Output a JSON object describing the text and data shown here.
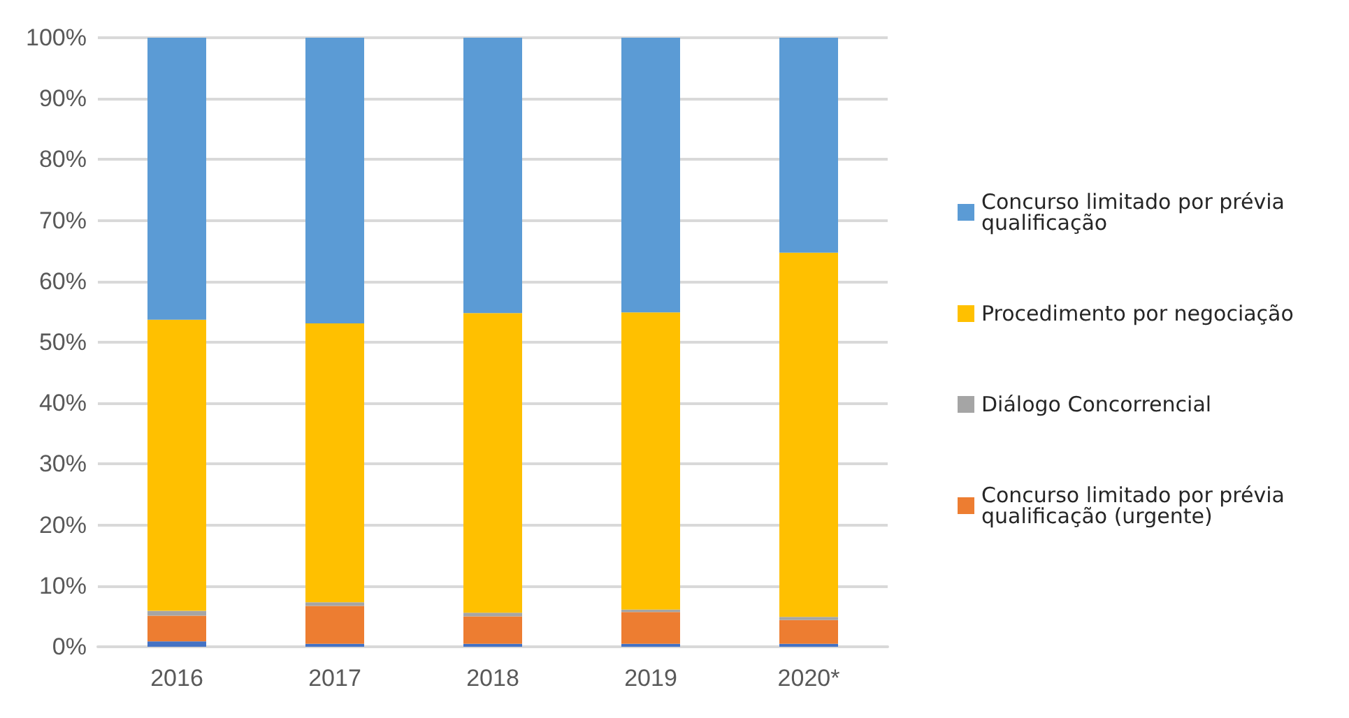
{
  "chart_data": {
    "type": "bar",
    "stacked": true,
    "categories": [
      "2016",
      "2017",
      "2018",
      "2019",
      "2020*"
    ],
    "series": [
      {
        "color": "#4472c4",
        "values": [
          0.9,
          0.5,
          0.5,
          0.5,
          0.5
        ]
      },
      {
        "name": "Concurso limitado por prévia qualificação (urgente)",
        "color": "#ed7d31",
        "values": [
          4.2,
          6.2,
          4.5,
          5.2,
          3.9
        ]
      },
      {
        "name": "Diálogo Concorrencial",
        "color": "#a5a5a5",
        "values": [
          0.8,
          0.6,
          0.6,
          0.4,
          0.5
        ]
      },
      {
        "name": "Procedimento por negociação",
        "color": "#ffc000",
        "values": [
          47.8,
          45.8,
          49.2,
          48.8,
          59.8
        ]
      },
      {
        "name": "Concurso limitado por prévia qualificação",
        "color": "#5b9bd5",
        "values": [
          46.3,
          46.9,
          45.2,
          45.2,
          35.3
        ]
      }
    ],
    "ylim": [
      0,
      100
    ],
    "yticks": [
      {
        "value": 0,
        "label": "0%"
      },
      {
        "value": 10,
        "label": "10%"
      },
      {
        "value": 20,
        "label": "20%"
      },
      {
        "value": 30,
        "label": "30%"
      },
      {
        "value": 40,
        "label": "40%"
      },
      {
        "value": 50,
        "label": "50%"
      },
      {
        "value": 60,
        "label": "60%"
      },
      {
        "value": 70,
        "label": "70%"
      },
      {
        "value": 80,
        "label": "80%"
      },
      {
        "value": 90,
        "label": "90%"
      },
      {
        "value": 100,
        "label": "100%"
      }
    ],
    "grid": "y",
    "legend": "right"
  }
}
